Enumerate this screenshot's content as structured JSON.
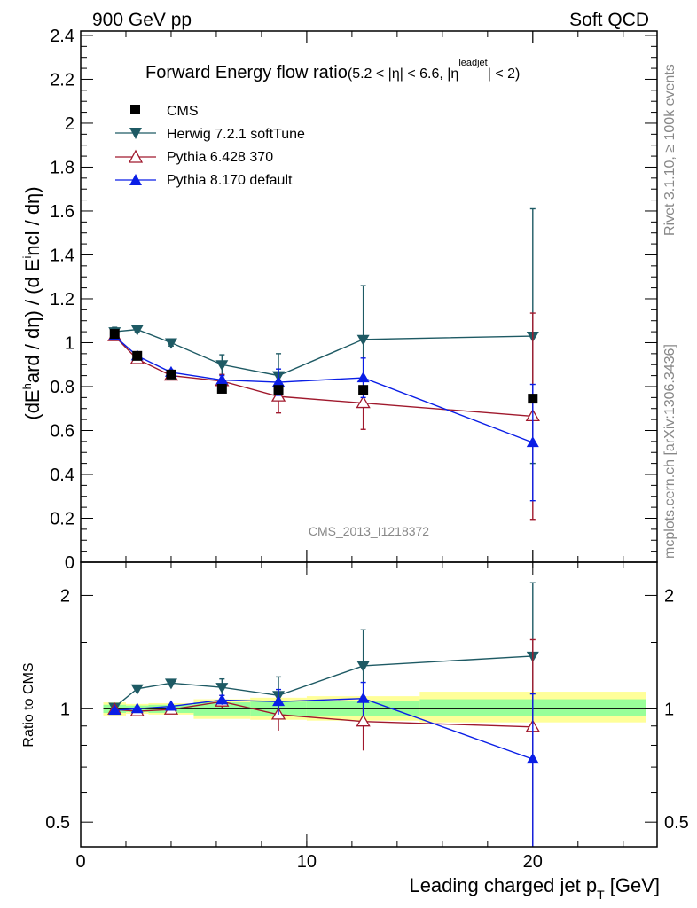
{
  "header": {
    "left": "900 GeV pp",
    "right": "Soft QCD"
  },
  "side_labels": {
    "rivet": "Rivet 3.1.10, ≥ 100k events",
    "mcplots": "mcplots.cern.ch [arXiv:1306.3436]"
  },
  "colors": {
    "cms": "#000000",
    "herwig": "#1e5a64",
    "pythia6": "#a0192d",
    "pythia8": "#0a1ee6",
    "band_inner": "#99ff99",
    "band_outer": "#ffff99"
  },
  "chart_data": [
    {
      "type": "line",
      "title": "Forward Energy flow ratio",
      "title_suffix": "(5.2 < |η| < 6.6, |η",
      "title_sup": "leadjet",
      "title_end": "| < 2)",
      "watermark": "CMS_2013_I1218372",
      "ylabel": "(dE^hard / dη) / (d E^incl / dη)",
      "ylabel_parts": [
        "(dE",
        "h",
        "ard / dη) / (d E",
        "i",
        "ncl / dη)"
      ],
      "xlim": [
        0,
        25.5
      ],
      "ylim": [
        0,
        2.42
      ],
      "yticks": [
        0,
        0.2,
        0.4,
        0.6,
        0.8,
        1,
        1.2,
        1.4,
        1.6,
        1.8,
        2,
        2.2,
        2.4
      ],
      "ytick_labels": [
        "0",
        "0.2",
        "0.4",
        "0.6",
        "0.8",
        "1",
        "1.2",
        "1.4",
        "1.6",
        "1.8",
        "2",
        "2.2",
        "2.4"
      ],
      "series": [
        {
          "name": "CMS",
          "key": "cms",
          "marker": "square",
          "x": [
            1.5,
            2.5,
            4.0,
            6.25,
            8.75,
            12.5,
            20.0
          ],
          "y": [
            1.04,
            0.94,
            0.855,
            0.79,
            0.785,
            0.785,
            0.745
          ]
        },
        {
          "name": "Herwig 7.2.1 softTune",
          "key": "herwig",
          "marker": "triangle-down",
          "x": [
            1.5,
            2.5,
            4.0,
            6.25,
            8.75,
            12.5,
            20.0
          ],
          "y": [
            1.05,
            1.06,
            1.0,
            0.9,
            0.85,
            1.015,
            1.03
          ],
          "err": [
            0.02,
            0.01,
            0.015,
            0.045,
            0.1,
            0.245,
            0.58
          ]
        },
        {
          "name": "Pythia 6.428 370",
          "key": "pythia6",
          "marker": "triangle-up-open",
          "x": [
            1.5,
            2.5,
            4.0,
            6.25,
            8.75,
            12.5,
            20.0
          ],
          "y": [
            1.03,
            0.925,
            0.85,
            0.825,
            0.755,
            0.725,
            0.665
          ],
          "err": [
            0.01,
            0.01,
            0.01,
            0.03,
            0.075,
            0.12,
            0.47
          ]
        },
        {
          "name": "Pythia 8.170 default",
          "key": "pythia8",
          "marker": "triangle-up",
          "x": [
            1.5,
            2.5,
            4.0,
            6.25,
            8.75,
            12.5,
            20.0
          ],
          "y": [
            1.03,
            0.94,
            0.865,
            0.83,
            0.82,
            0.84,
            0.545
          ],
          "err": [
            0.01,
            0.01,
            0.01,
            0.02,
            0.06,
            0.09,
            0.265
          ]
        }
      ]
    },
    {
      "type": "line",
      "title": "Ratio to CMS",
      "ylabel": "Ratio to CMS",
      "xlabel": "Leading charged jet p",
      "xlabel_sub": "T",
      "xlabel_unit": " [GeV]",
      "xlim": [
        0,
        25.5
      ],
      "ylim": [
        0.43,
        2.45
      ],
      "xticks": [
        0,
        10,
        20
      ],
      "xtick_labels": [
        "0",
        "10",
        "20"
      ],
      "yticks": [
        0.5,
        1,
        2
      ],
      "ytick_labels": [
        "0.5",
        "1",
        "2"
      ],
      "band_bins": [
        {
          "x0": 1.0,
          "x1": 2.0,
          "inner": [
            0.975,
            1.025
          ],
          "outer": [
            0.96,
            1.04
          ]
        },
        {
          "x0": 2.0,
          "x1": 3.0,
          "inner": [
            0.98,
            1.02
          ],
          "outer": [
            0.97,
            1.03
          ]
        },
        {
          "x0": 3.0,
          "x1": 5.0,
          "inner": [
            0.975,
            1.025
          ],
          "outer": [
            0.965,
            1.035
          ]
        },
        {
          "x0": 5.0,
          "x1": 7.5,
          "inner": [
            0.96,
            1.04
          ],
          "outer": [
            0.94,
            1.06
          ]
        },
        {
          "x0": 7.5,
          "x1": 10.0,
          "inner": [
            0.955,
            1.045
          ],
          "outer": [
            0.935,
            1.07
          ]
        },
        {
          "x0": 10.0,
          "x1": 15.0,
          "inner": [
            0.955,
            1.05
          ],
          "outer": [
            0.93,
            1.08
          ]
        },
        {
          "x0": 15.0,
          "x1": 25.0,
          "inner": [
            0.955,
            1.06
          ],
          "outer": [
            0.92,
            1.11
          ]
        }
      ],
      "series": [
        {
          "name": "Herwig 7.2.1 softTune",
          "key": "herwig",
          "marker": "triangle-down",
          "x": [
            1.5,
            2.5,
            4.0,
            6.25,
            8.75,
            12.5,
            20.0
          ],
          "y": [
            1.01,
            1.13,
            1.17,
            1.14,
            1.085,
            1.3,
            1.38
          ],
          "err": [
            0.02,
            0.01,
            0.015,
            0.06,
            0.13,
            0.32,
            0.78
          ]
        },
        {
          "name": "Pythia 6.428 370",
          "key": "pythia6",
          "marker": "triangle-up-open",
          "x": [
            1.5,
            2.5,
            4.0,
            6.25,
            8.75,
            12.5,
            20.0
          ],
          "y": [
            0.995,
            0.985,
            0.995,
            1.045,
            0.965,
            0.925,
            0.895
          ],
          "err": [
            0.01,
            0.01,
            0.01,
            0.04,
            0.09,
            0.15,
            0.63
          ]
        },
        {
          "name": "Pythia 8.170 default",
          "key": "pythia8",
          "marker": "triangle-up",
          "x": [
            1.5,
            2.5,
            4.0,
            6.25,
            8.75,
            12.5,
            20.0
          ],
          "y": [
            0.99,
            1.0,
            1.015,
            1.055,
            1.045,
            1.065,
            0.735
          ],
          "err": [
            0.01,
            0.01,
            0.01,
            0.03,
            0.08,
            0.11,
            0.36
          ]
        }
      ]
    }
  ]
}
